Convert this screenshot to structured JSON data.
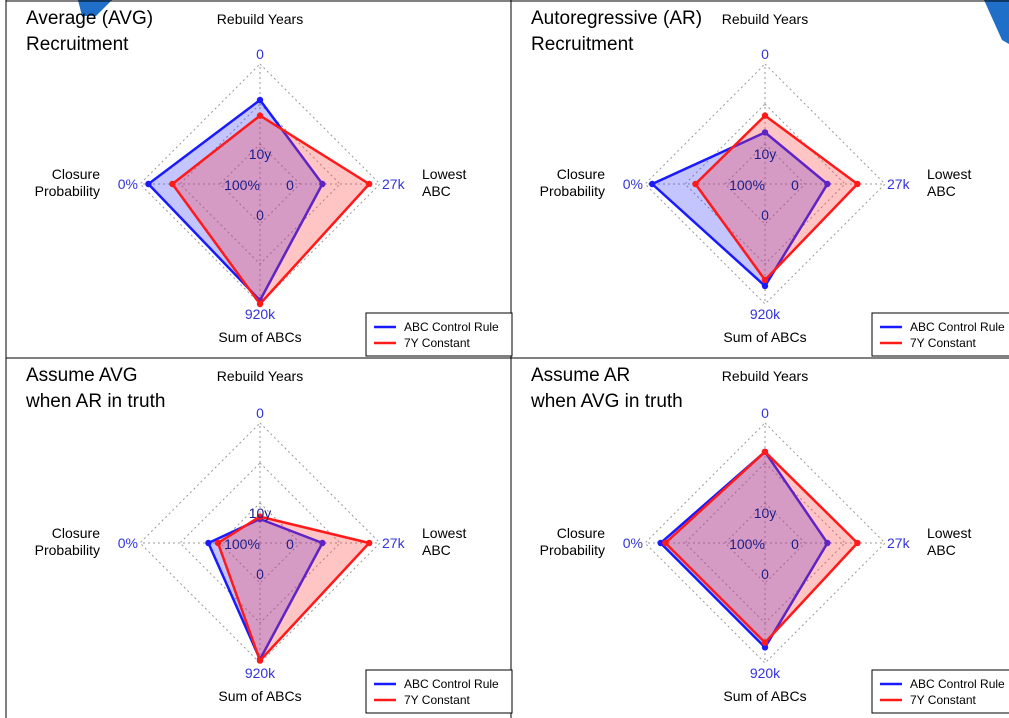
{
  "colors": {
    "abc_rule": "#1a1aff",
    "constant": "#ff1a1a",
    "abc_fill": "rgba(60,60,255,0.30)",
    "constant_fill": "rgba(255,60,60,0.30)",
    "tick_label": "#3333dd",
    "grid": "#9a9a9a",
    "corner_blue": "#1f6fc9"
  },
  "chart_data": [
    {
      "type": "radar",
      "title": [
        "Average (AVG)",
        "Recruitment"
      ],
      "axes": [
        {
          "name": "Rebuild Years",
          "outer_label": "0",
          "inner_label": "10y"
        },
        {
          "name": "Lowest ABC",
          "outer_label": "27k",
          "inner_label": "0"
        },
        {
          "name": "Sum of ABCs",
          "outer_label": "920k",
          "inner_label": "0"
        },
        {
          "name": "Closure Probability",
          "outer_label": "0%",
          "inner_label": "100%"
        }
      ],
      "series": [
        {
          "name": "ABC Control Rule",
          "values": [
            0.7,
            0.52,
            0.97,
            0.93
          ]
        },
        {
          "name": "7Y Constant",
          "values": [
            0.57,
            0.91,
            1.0,
            0.73
          ]
        }
      ],
      "legend": "bottom-right",
      "grid": true
    },
    {
      "type": "radar",
      "title": [
        "Autoregressive (AR)",
        "Recruitment"
      ],
      "axes": [
        {
          "name": "Rebuild Years",
          "outer_label": "0",
          "inner_label": "10y"
        },
        {
          "name": "Lowest ABC",
          "outer_label": "27k",
          "inner_label": "0"
        },
        {
          "name": "Sum of ABCs",
          "outer_label": "920k",
          "inner_label": "0"
        },
        {
          "name": "Closure Probability",
          "outer_label": "0%",
          "inner_label": "100%"
        }
      ],
      "series": [
        {
          "name": "ABC Control Rule",
          "values": [
            0.43,
            0.52,
            0.85,
            0.94
          ]
        },
        {
          "name": "7Y Constant",
          "values": [
            0.57,
            0.77,
            0.8,
            0.58
          ]
        }
      ],
      "legend": "bottom-right",
      "grid": true
    },
    {
      "type": "radar",
      "title": [
        "Assume AVG",
        "when AR in truth"
      ],
      "axes": [
        {
          "name": "Rebuild Years",
          "outer_label": "0",
          "inner_label": "10y"
        },
        {
          "name": "Lowest ABC",
          "outer_label": "27k",
          "inner_label": "0"
        },
        {
          "name": "Sum of ABCs",
          "outer_label": "920k",
          "inner_label": "0"
        },
        {
          "name": "Closure Probability",
          "outer_label": "0%",
          "inner_label": "100%"
        }
      ],
      "series": [
        {
          "name": "ABC Control Rule",
          "values": [
            0.2,
            0.52,
            0.97,
            0.43
          ]
        },
        {
          "name": "7Y Constant",
          "values": [
            0.22,
            0.91,
            0.98,
            0.35
          ]
        }
      ],
      "legend": "bottom-right",
      "grid": true
    },
    {
      "type": "radar",
      "title": [
        "Assume AR",
        "when AVG in truth"
      ],
      "axes": [
        {
          "name": "Rebuild Years",
          "outer_label": "0",
          "inner_label": "10y"
        },
        {
          "name": "Lowest ABC",
          "outer_label": "27k",
          "inner_label": "0"
        },
        {
          "name": "Sum of ABCs",
          "outer_label": "920k",
          "inner_label": "0"
        },
        {
          "name": "Closure Probability",
          "outer_label": "0%",
          "inner_label": "100%"
        }
      ],
      "series": [
        {
          "name": "ABC Control Rule",
          "values": [
            0.76,
            0.52,
            0.87,
            0.87
          ]
        },
        {
          "name": "7Y Constant",
          "values": [
            0.76,
            0.77,
            0.83,
            0.83
          ]
        }
      ],
      "legend": "bottom-right",
      "grid": true
    }
  ]
}
